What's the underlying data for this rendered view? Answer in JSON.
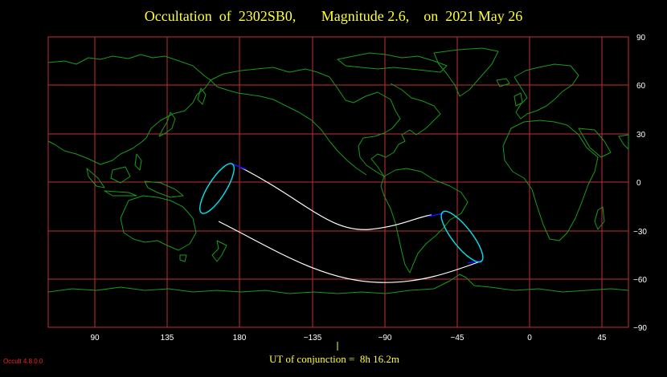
{
  "title": "Occultation  of  2302SB0,       Magnitude 2.6,    on  2021 May 26",
  "lat_ticks": [
    "90",
    "60",
    "30",
    "0",
    "−30",
    "−60",
    "−90"
  ],
  "lon_ticks": [
    "90",
    "135",
    "180",
    "−135",
    "−90",
    "−45",
    "0",
    "45"
  ],
  "ut_label": "UT of conjunction =  8h 16.2m",
  "version": "Occult 4.8.0.0",
  "colors": {
    "background": "#000000",
    "grid": "#c03030",
    "coastline": "#1a9a1a",
    "path": "#ffffff",
    "limit_ellipse": "#00e5ee",
    "path_ends": "#1010ff",
    "text": "#ffff33",
    "version": "#ff2020"
  }
}
